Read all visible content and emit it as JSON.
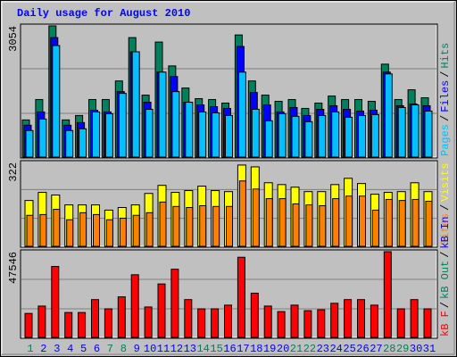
{
  "title": "Daily usage for August 2010",
  "legend_separator": "/",
  "chart_data": [
    {
      "type": "bar",
      "ylim": [
        0,
        3054
      ],
      "yticks": [
        3054
      ],
      "series": [
        {
          "name": "Hits",
          "color": "#00805c",
          "values": [
            865,
            1339,
            3054,
            865,
            968,
            1339,
            1339,
            1772,
            2781,
            1442,
            2678,
            2122,
            1607,
            1360,
            1339,
            1257,
            2843,
            1772,
            1442,
            1298,
            1339,
            1133,
            1257,
            1421,
            1339,
            1339,
            1298,
            2163,
            1339,
            1566,
            1380
          ]
        },
        {
          "name": "Files",
          "color": "#0000ff",
          "values": [
            742,
            1051,
            2781,
            742,
            803,
            1092,
            1051,
            1524,
            2451,
            1277,
            1978,
            1875,
            1277,
            1215,
            1174,
            1133,
            2575,
            1504,
            1215,
            1051,
            1154,
            968,
            1112,
            1195,
            1112,
            1071,
            1092,
            1978,
            1195,
            1236,
            1195
          ]
        },
        {
          "name": "Pages",
          "color": "#00c0ff",
          "values": [
            618,
            886,
            2596,
            618,
            659,
            1051,
            1009,
            1483,
            2451,
            1112,
            1978,
            1524,
            1277,
            1051,
            1030,
            968,
            1978,
            1112,
            845,
            1009,
            948,
            824,
            968,
            1051,
            927,
            968,
            989,
            1936,
            1154,
            1215,
            1071
          ]
        }
      ]
    },
    {
      "type": "bar",
      "ylim": [
        0,
        322
      ],
      "yticks": [
        322
      ],
      "series": [
        {
          "name": "Visits",
          "color": "#ffff00",
          "values": [
            176,
            207,
            197,
            159,
            159,
            159,
            139,
            149,
            159,
            203,
            234,
            207,
            214,
            231,
            214,
            210,
            312,
            305,
            244,
            237,
            227,
            210,
            210,
            237,
            261,
            241,
            200,
            207,
            210,
            244,
            210
          ]
        },
        {
          "name": "Sites",
          "color": "#ff8000",
          "values": [
            119,
            122,
            142,
            102,
            129,
            122,
            102,
            108,
            119,
            129,
            170,
            153,
            149,
            156,
            153,
            153,
            251,
            220,
            183,
            183,
            163,
            159,
            156,
            183,
            193,
            193,
            139,
            180,
            176,
            180,
            173
          ]
        }
      ]
    },
    {
      "type": "bar",
      "ylim": [
        0,
        47546
      ],
      "yticks": [
        47546
      ],
      "categories": [
        "1",
        "2",
        "3",
        "4",
        "5",
        "6",
        "7",
        "8",
        "9",
        "10",
        "11",
        "12",
        "13",
        "14",
        "15",
        "16",
        "17",
        "18",
        "19",
        "20",
        "21",
        "22",
        "23",
        "24",
        "25",
        "26",
        "27",
        "28",
        "29",
        "30",
        "31"
      ],
      "category_colors": [
        "#00805c",
        "#0000ff",
        "#0000ff",
        "#0000ff",
        "#0000ff",
        "#0000ff",
        "#00805c",
        "#00805c",
        "#0000ff",
        "#0000ff",
        "#0000ff",
        "#0000ff",
        "#0000ff",
        "#00805c",
        "#00805c",
        "#0000ff",
        "#0000ff",
        "#0000ff",
        "#0000ff",
        "#0000ff",
        "#00805c",
        "#00805c",
        "#0000ff",
        "#0000ff",
        "#0000ff",
        "#0000ff",
        "#0000ff",
        "#00805c",
        "#00805c",
        "#0000ff",
        "#0000ff"
      ],
      "series": [
        {
          "name": "kB F",
          "color": "#ff0000",
          "values": [
            13286,
            17374,
            39347,
            13797,
            13797,
            20951,
            15841,
            22484,
            34748,
            16863,
            29638,
            37814,
            20951,
            15841,
            15841,
            17885,
            44457,
            24528,
            17374,
            14308,
            17885,
            14819,
            15330,
            18907,
            20951,
            20951,
            17885,
            47546,
            15841,
            20951,
            15841
          ]
        }
      ],
      "legend_extra": [
        {
          "name": "kB Out",
          "color": "#00805c"
        },
        {
          "name": "kB In",
          "color": "#0000ff"
        }
      ]
    }
  ]
}
